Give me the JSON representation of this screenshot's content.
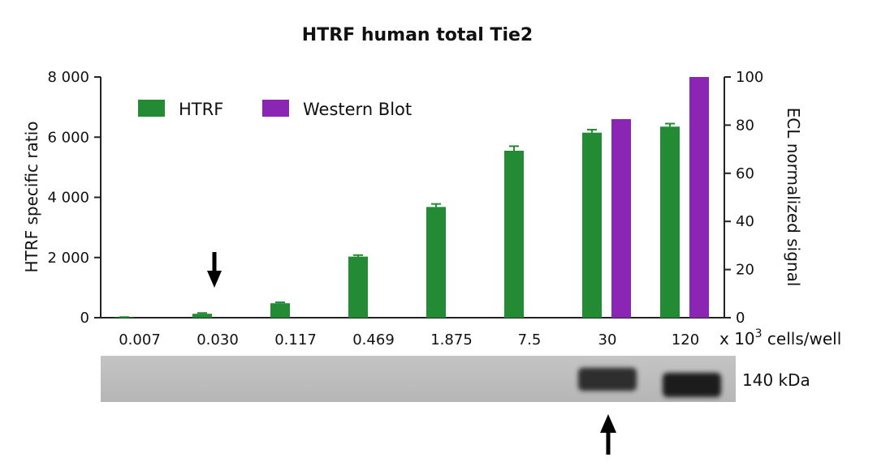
{
  "chart_data": {
    "type": "bar",
    "title": "HTRF human total Tie2",
    "categories": [
      "0.007",
      "0.030",
      "0.117",
      "0.469",
      "1.875",
      "7.5",
      "30",
      "120"
    ],
    "xlabel_prefix": "x 10",
    "xlabel_sup": "3",
    "xlabel_suffix": " cells/well",
    "ylabel": "HTRF specific ratio",
    "y2label": "ECL normalized signal",
    "ylim": [
      0,
      8000
    ],
    "y2lim": [
      0,
      100
    ],
    "yticks": [
      0,
      2000,
      4000,
      6000,
      8000
    ],
    "ytick_labels": [
      "0",
      "2 000",
      "4 000",
      "6 000",
      "8 000"
    ],
    "y2ticks": [
      0,
      20,
      40,
      60,
      80,
      100
    ],
    "legend_position": "top-left",
    "series": [
      {
        "name": "HTRF",
        "axis": "left",
        "color": "#228b33",
        "values": [
          15,
          130,
          480,
          2030,
          3680,
          5550,
          6150,
          6350
        ],
        "errors": [
          5,
          25,
          30,
          50,
          100,
          150,
          100,
          100
        ]
      },
      {
        "name": "Western Blot",
        "axis": "right",
        "color": "#8b25b3",
        "values": [
          null,
          null,
          null,
          null,
          null,
          null,
          82.5,
          100
        ]
      }
    ],
    "blot": {
      "label": "140 kDa",
      "band_intensity": [
        0,
        0,
        0,
        0,
        0,
        0,
        0.8,
        1.0
      ]
    },
    "annotations": [
      {
        "type": "arrow-down",
        "category": "0.030",
        "position": "above chart bar"
      },
      {
        "type": "arrow-up",
        "category": "30",
        "position": "below blot"
      }
    ]
  }
}
